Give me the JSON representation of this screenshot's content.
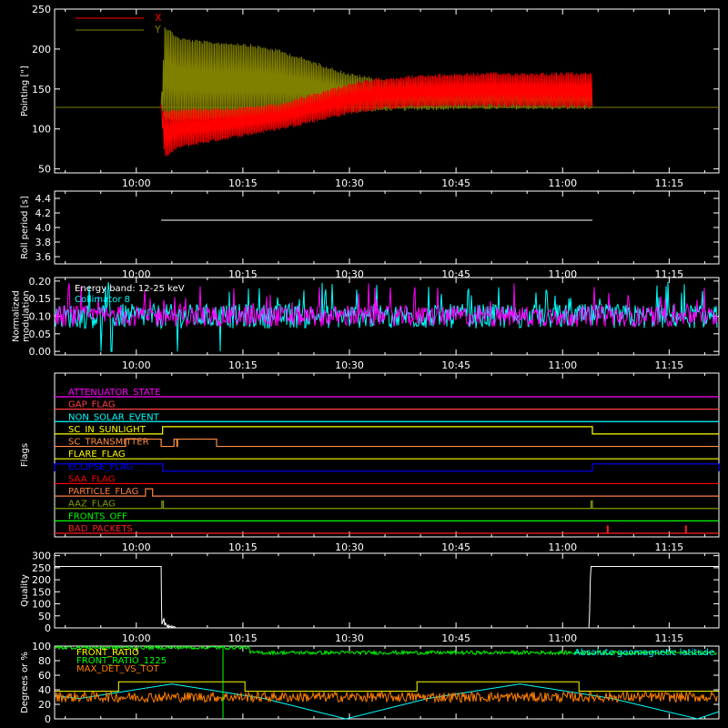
{
  "x_ticks": [
    "10:00",
    "10:15",
    "10:30",
    "10:45",
    "11:00",
    "11:15"
  ],
  "x_tick_minutes": [
    600,
    615,
    630,
    645,
    660,
    675
  ],
  "x_range_minutes": [
    588.5,
    682
  ],
  "colors": {
    "background": "#000000",
    "axis": "#ffffff",
    "red": "#ff0000",
    "olive": "#808000",
    "cyan": "#00ffff",
    "magenta": "#ff00ff",
    "yellow": "#ffff00",
    "orange": "#ff8000",
    "green": "#00ff00",
    "blue": "#0000ff",
    "sc_transmitter": "#ff8c40",
    "particle": "#ff8040",
    "aaz": "#80a000",
    "bad": "#ff2020",
    "gap": "#ff4040"
  },
  "chart_data": [
    {
      "id": "pointing",
      "type": "line",
      "ylabel": "Pointing [\"]",
      "ylim": [
        45,
        250
      ],
      "yticks": [
        50,
        100,
        150,
        200,
        250
      ],
      "legend": [
        {
          "name": "X",
          "color": "#ff0000"
        },
        {
          "name": "Y",
          "color": "#808000"
        }
      ],
      "reference_line": 127,
      "data_start_minutes": 603.5,
      "data_end_minutes": 664.2,
      "series": [
        {
          "name": "X",
          "color": "#ff0000",
          "x_minutes": [
            603.5,
            604,
            606,
            610,
            615,
            620,
            625,
            630,
            635,
            640,
            645,
            650,
            655,
            660,
            664.2
          ],
          "y_min": [
            127,
            62,
            75,
            82,
            90,
            98,
            108,
            118,
            124,
            126,
            127,
            127,
            127,
            126,
            126
          ],
          "y_max": [
            127,
            125,
            126,
            127,
            128,
            132,
            145,
            158,
            165,
            168,
            170,
            171,
            171,
            171,
            171
          ]
        },
        {
          "name": "Y",
          "color": "#808000",
          "x_minutes": [
            603.5,
            604,
            606,
            610,
            615,
            620,
            625,
            630,
            635,
            640,
            645,
            650,
            655,
            660,
            664.2
          ],
          "y_min": [
            127,
            110,
            108,
            110,
            112,
            115,
            118,
            120,
            122,
            123,
            124,
            124,
            124,
            124,
            124
          ],
          "y_max": [
            127,
            230,
            215,
            210,
            208,
            200,
            185,
            170,
            163,
            160,
            158,
            158,
            158,
            158,
            158
          ]
        }
      ]
    },
    {
      "id": "roll",
      "type": "line",
      "ylabel": "Roll period [s]",
      "ylim": [
        3.5,
        4.5
      ],
      "yticks": [
        3.6,
        3.8,
        4.0,
        4.2,
        4.4
      ],
      "series": [
        {
          "name": "",
          "color": "#ffffff",
          "x_minutes": [
            603.5,
            664.2
          ],
          "y": [
            4.1,
            4.1
          ]
        }
      ]
    },
    {
      "id": "modulation",
      "type": "line",
      "ylabel_lines": [
        "Normalized",
        "modulation"
      ],
      "ylim": [
        -0.01,
        0.21
      ],
      "yticks": [
        0.0,
        0.05,
        0.1,
        0.15,
        0.2
      ],
      "ytick_labels": [
        "0.00",
        "0.05",
        "0.10",
        "0.15",
        "0.20"
      ],
      "annotations": [
        {
          "text": "Energy band: 12-25 keV",
          "color": "#ffffff"
        },
        {
          "text": "Collimator 8",
          "color": "#00ffff"
        }
      ],
      "baseline": 0.1,
      "series": [
        {
          "name": "Collimator 8",
          "color": "#00ffff",
          "spread": 0.035,
          "dropouts_minutes": [
            595,
            596.5,
            605.8,
            611.8
          ]
        },
        {
          "name": "",
          "color": "#ff00ff",
          "spread": 0.03
        }
      ]
    },
    {
      "id": "flags",
      "type": "line",
      "ylabel": "Flags",
      "flags": [
        {
          "label": "ATTENUATOR_STATE",
          "color": "#ff00ff",
          "high": []
        },
        {
          "label": "GAP_FLAG",
          "color": "#ff4040",
          "high": []
        },
        {
          "label": "NON_SOLAR_EVENT",
          "color": "#00ffff",
          "high": []
        },
        {
          "label": "SC_IN_SUNLIGHT",
          "color": "#ffff00",
          "high": [
            [
              603.7,
              664.2
            ]
          ]
        },
        {
          "label": "SC_TRANSMITTER",
          "color": "#ff8c40",
          "high": [
            [
              598.5,
              603.5
            ],
            [
              605.3,
              605.7
            ],
            [
              605.8,
              611.3
            ]
          ]
        },
        {
          "label": "FLARE_FLAG",
          "color": "#ffff00",
          "high": []
        },
        {
          "label": "ECLIPSE_FLAG",
          "color": "#0000ff",
          "high": [
            [
              588.5,
              603.7
            ],
            [
              664.2,
              682
            ]
          ]
        },
        {
          "label": "SAA_FLAG",
          "color": "#ff0000",
          "high": []
        },
        {
          "label": "PARTICLE_FLAG",
          "color": "#ff8040",
          "high": [
            [
              601.3,
              602.3
            ]
          ]
        },
        {
          "label": "AAZ_FLAG",
          "color": "#80a000",
          "high": [
            [
              603.6,
              603.8
            ],
            [
              664.0,
              664.2
            ]
          ]
        },
        {
          "label": "FRONTS_OFF",
          "color": "#00ff00",
          "high": []
        },
        {
          "label": "BAD_PACKETS",
          "color": "#ff2020",
          "high": [
            [
              666.3,
              666.4
            ],
            [
              677.3,
              677.4
            ]
          ]
        }
      ]
    },
    {
      "id": "quality",
      "type": "line",
      "ylabel": "Quality",
      "ylim": [
        0,
        310
      ],
      "yticks": [
        0,
        50,
        100,
        150,
        200,
        250,
        300
      ],
      "series": [
        {
          "name": "",
          "color": "#ffffff",
          "x_minutes": [
            588.5,
            603.5,
            603.55,
            603.6,
            603.9,
            604.0,
            604.1,
            604.4,
            604.5,
            604.6,
            604.7,
            605.0,
            605.3,
            605.6,
            663.7,
            663.8,
            663.9,
            664.0,
            682
          ],
          "y": [
            255,
            255,
            90,
            15,
            40,
            10,
            20,
            3,
            12,
            2,
            8,
            2,
            6,
            0,
            0,
            60,
            200,
            255,
            255
          ]
        }
      ]
    },
    {
      "id": "ratios",
      "type": "line",
      "ylabel": "Degrees or %",
      "ylim": [
        0,
        100
      ],
      "yticks": [
        0,
        20,
        40,
        60,
        80,
        100
      ],
      "legend": [
        {
          "name": "FRONT_RATIO",
          "color": "#ffff00"
        },
        {
          "name": "FRONT_RATIO_1225",
          "color": "#00ff00"
        },
        {
          "name": "MAX_DET_VS_TOT",
          "color": "#ff8000"
        },
        {
          "name": "Absolute geomagnetic latitude",
          "color": "#00ffff"
        }
      ],
      "series": [
        {
          "name": "FRONT_RATIO",
          "color": "#ffff00",
          "steps": [
            [
              588.5,
              597.5,
              38
            ],
            [
              597.5,
              615.3,
              51
            ],
            [
              615.3,
              639.5,
              38
            ],
            [
              639.5,
              662.3,
              51
            ],
            [
              662.3,
              682,
              38
            ]
          ]
        },
        {
          "name": "FRONT_RATIO_1225",
          "color": "#00ff00",
          "segments": [
            [
              588.5,
              616,
              98
            ],
            [
              616,
              682,
              91
            ]
          ],
          "spike_minutes": 612.2
        },
        {
          "name": "MAX_DET_VS_TOT",
          "color": "#ff8000",
          "level": 30,
          "spread": 7
        },
        {
          "name": "Absolute geomagnetic latitude",
          "color": "#00ffff",
          "x_minutes": [
            588.5,
            592,
            605,
            618,
            629.5,
            641,
            654,
            667,
            679,
            682
          ],
          "y": [
            32,
            28,
            48,
            28,
            0,
            28,
            48,
            28,
            0,
            10
          ]
        }
      ]
    }
  ]
}
